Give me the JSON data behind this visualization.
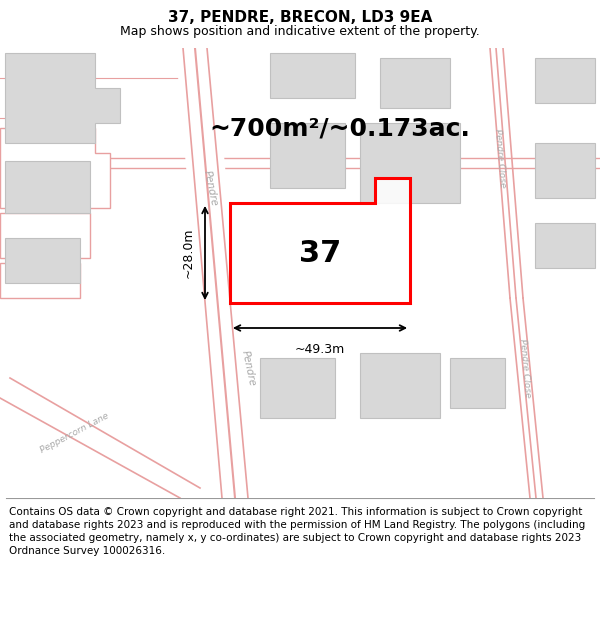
{
  "title": "37, PENDRE, BRECON, LD3 9EA",
  "subtitle": "Map shows position and indicative extent of the property.",
  "footer": "Contains OS data © Crown copyright and database right 2021. This information is subject to Crown copyright and database rights 2023 and is reproduced with the permission of HM Land Registry. The polygons (including the associated geometry, namely x, y co-ordinates) are subject to Crown copyright and database rights 2023 Ordnance Survey 100026316.",
  "map_bg": "#ffffff",
  "title_area_bg": "#ffffff",
  "footer_bg": "#ffffff",
  "area_label": "~700m²/~0.173ac.",
  "plot_number": "37",
  "width_label": "~49.3m",
  "height_label": "~28.0m",
  "plot_color": "#ff0000",
  "plot_linewidth": 2.2,
  "road_color": "#e8a0a0",
  "road_outline_color": "#f0c0c0",
  "building_color": "#d8d8d8",
  "building_edge_color": "#c0c0c0",
  "street_label_color": "#aaaaaa",
  "title_fontsize": 11,
  "subtitle_fontsize": 9,
  "footer_fontsize": 7.5,
  "area_fontsize": 18,
  "number_fontsize": 22,
  "dim_fontsize": 9
}
